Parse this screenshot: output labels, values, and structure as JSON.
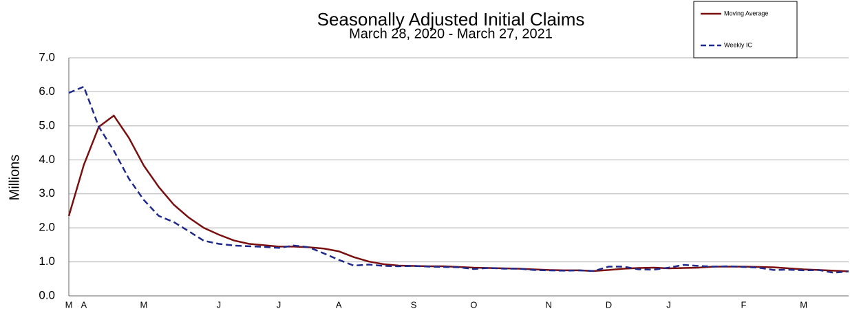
{
  "chart_data": {
    "type": "line",
    "title": "Seasonally Adjusted Initial Claims",
    "subtitle": "March 28, 2020 - March 27, 2021",
    "y_label": "Millions",
    "categories": [
      "M",
      "A",
      null,
      null,
      null,
      "M",
      null,
      null,
      null,
      null,
      "J",
      null,
      null,
      null,
      "J",
      null,
      null,
      null,
      "A",
      null,
      null,
      null,
      null,
      "S",
      null,
      null,
      null,
      "O",
      null,
      null,
      null,
      null,
      "N",
      null,
      null,
      null,
      "D",
      null,
      null,
      null,
      "J",
      null,
      null,
      null,
      null,
      "F",
      null,
      null,
      null,
      "M",
      null,
      null,
      null
    ],
    "series": [
      {
        "name": "Moving Average",
        "color": "#7a0f0f",
        "dash": false,
        "values": [
          2.35,
          3.85,
          4.97,
          5.3,
          4.65,
          3.83,
          3.2,
          2.68,
          2.3,
          2.0,
          1.8,
          1.63,
          1.53,
          1.49,
          1.45,
          1.45,
          1.43,
          1.39,
          1.31,
          1.14,
          1.01,
          0.93,
          0.89,
          0.88,
          0.87,
          0.87,
          0.85,
          0.83,
          0.82,
          0.81,
          0.8,
          0.78,
          0.76,
          0.75,
          0.75,
          0.73,
          0.76,
          0.8,
          0.82,
          0.83,
          0.81,
          0.82,
          0.83,
          0.86,
          0.86,
          0.86,
          0.85,
          0.84,
          0.81,
          0.78,
          0.76,
          0.74,
          0.72
        ]
      },
      {
        "name": "Weekly IC",
        "color": "#1f2a8a",
        "dash": true,
        "values": [
          5.97,
          6.15,
          4.97,
          4.27,
          3.45,
          2.82,
          2.35,
          2.17,
          1.9,
          1.62,
          1.53,
          1.48,
          1.46,
          1.44,
          1.41,
          1.48,
          1.43,
          1.25,
          1.06,
          0.89,
          0.92,
          0.88,
          0.87,
          0.88,
          0.86,
          0.85,
          0.84,
          0.79,
          0.82,
          0.8,
          0.8,
          0.76,
          0.75,
          0.74,
          0.75,
          0.73,
          0.86,
          0.86,
          0.78,
          0.77,
          0.83,
          0.91,
          0.88,
          0.86,
          0.87,
          0.85,
          0.83,
          0.76,
          0.77,
          0.75,
          0.76,
          0.68,
          0.72
        ]
      }
    ],
    "ylim": [
      0,
      7
    ],
    "yticks": [
      {
        "value": 0,
        "label": "0.0"
      },
      {
        "value": 1,
        "label": "1.0"
      },
      {
        "value": 2,
        "label": "2.0"
      },
      {
        "value": 3,
        "label": "3.0"
      },
      {
        "value": 4,
        "label": "4.0"
      },
      {
        "value": 5,
        "label": "5.0"
      },
      {
        "value": 6,
        "label": "6.0"
      },
      {
        "value": 7,
        "label": "7.0"
      }
    ],
    "grid": true,
    "legend": "top-right"
  }
}
